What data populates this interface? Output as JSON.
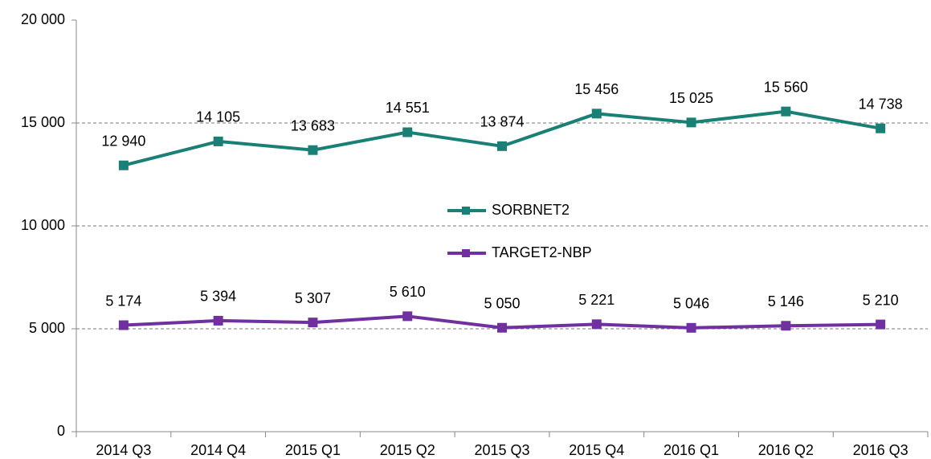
{
  "chart_data": {
    "type": "line",
    "categories": [
      "2014 Q3",
      "2014 Q4",
      "2015 Q1",
      "2015 Q2",
      "2015 Q3",
      "2015 Q4",
      "2016 Q1",
      "2016 Q2",
      "2016 Q3"
    ],
    "series": [
      {
        "name": "SORBNET2",
        "color": "#1a7f74",
        "values": [
          12940,
          14105,
          13683,
          14551,
          13874,
          15456,
          15025,
          15560,
          14738
        ],
        "value_labels": [
          "12 940",
          "14 105",
          "13 683",
          "14 551",
          "13 874",
          "15 456",
          "15 025",
          "15 560",
          "14 738"
        ]
      },
      {
        "name": "TARGET2-NBP",
        "color": "#7030a0",
        "values": [
          5174,
          5394,
          5307,
          5610,
          5050,
          5221,
          5046,
          5146,
          5210
        ],
        "value_labels": [
          "5 174",
          "5 394",
          "5 307",
          "5 610",
          "5 050",
          "5 221",
          "5 046",
          "5 146",
          "5 210"
        ]
      }
    ],
    "ylim": [
      0,
      20000
    ],
    "yticks": [
      0,
      {
        "value": 5000,
        "label": "5 000"
      },
      {
        "value": 10000,
        "label": "10 000"
      },
      {
        "value": 15000,
        "label": "15 000"
      },
      {
        "value": 20000,
        "label": "20 000"
      }
    ],
    "grid": true
  }
}
